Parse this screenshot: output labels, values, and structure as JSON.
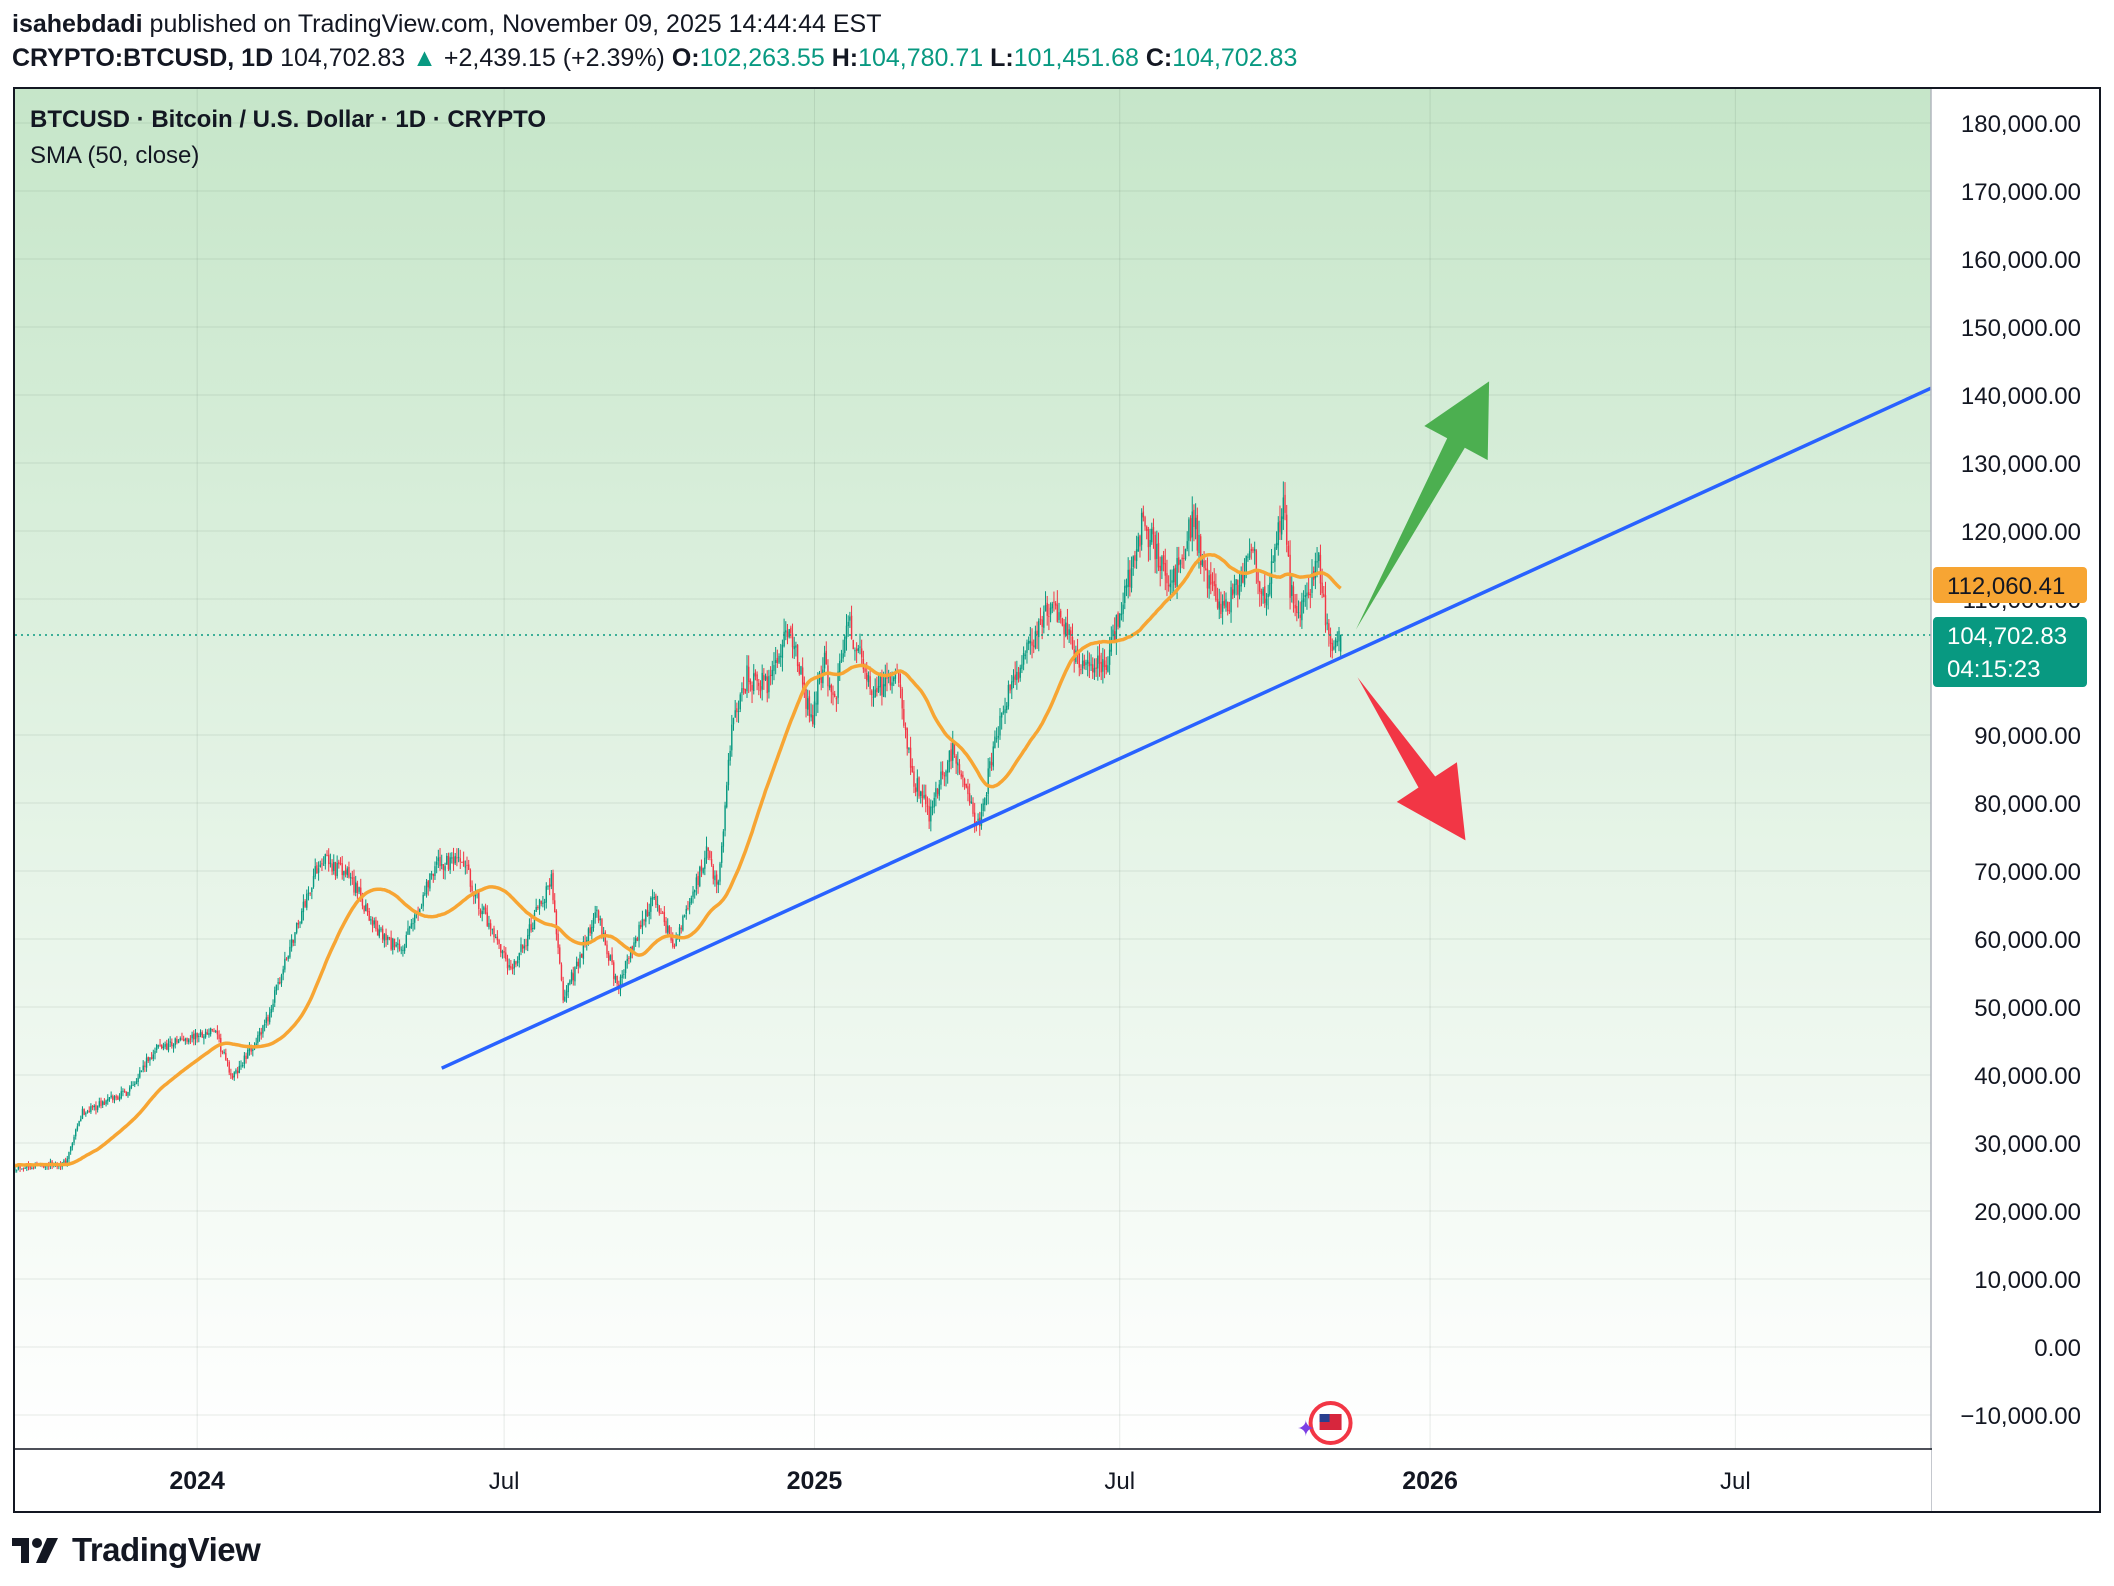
{
  "header": {
    "author": "isahebdadi",
    "published_text": "published on TradingView.com, November 09, 2025 14:44:44 EST",
    "symbol": "CRYPTO:BTCUSD, 1D",
    "last": "104,702.83",
    "change_arrow": "▲",
    "change": "+2,439.15 (+2.39%)",
    "o_label": "O:",
    "o_value": "102,263.55",
    "h_label": "H:",
    "h_value": "104,780.71",
    "l_label": "L:",
    "l_value": "101,451.68",
    "c_label": "C:",
    "c_value": "104,702.83"
  },
  "legend": {
    "title": "BTCUSD · Bitcoin / U.S. Dollar · 1D · CRYPTO",
    "indicator": "SMA (50, close)"
  },
  "footer": {
    "brand": "TradingView"
  },
  "colors": {
    "up": "#089981",
    "down": "#f23645",
    "sma": "#f7a533",
    "trendline": "#2962ff",
    "arrow_up": "#4caf50",
    "arrow_down": "#f23645",
    "bg_top": "#c6e6c9",
    "bg_bottom": "#ffffff"
  },
  "chart_data": {
    "type": "candlestick",
    "title": "BTCUSD · Bitcoin / U.S. Dollar · 1D · CRYPTO",
    "ylim": [
      -15000,
      185000
    ],
    "y_ticks": [
      -10000,
      0,
      10000,
      20000,
      30000,
      40000,
      50000,
      60000,
      70000,
      80000,
      90000,
      110000,
      120000,
      130000,
      140000,
      150000,
      160000,
      170000,
      180000
    ],
    "y_tick_labels": [
      "−10,000.00",
      "0.00",
      "10,000.00",
      "20,000.00",
      "30,000.00",
      "40,000.00",
      "50,000.00",
      "60,000.00",
      "70,000.00",
      "80,000.00",
      "90,000.00",
      "110,000.00",
      "120,000.00",
      "130,000.00",
      "140,000.00",
      "150,000.00",
      "160,000.00",
      "170,000.00",
      "180,000.00"
    ],
    "x_range": [
      "2023-09-15",
      "2026-10-25"
    ],
    "x_ticks": [
      {
        "date": "2024-01-01",
        "label": "2024",
        "bold": true
      },
      {
        "date": "2024-07-01",
        "label": "Jul",
        "bold": false
      },
      {
        "date": "2025-01-01",
        "label": "2025",
        "bold": true
      },
      {
        "date": "2025-07-01",
        "label": "Jul",
        "bold": false
      },
      {
        "date": "2026-01-01",
        "label": "2026",
        "bold": true
      },
      {
        "date": "2026-07-01",
        "label": "Jul",
        "bold": false
      }
    ],
    "price_anchors": [
      [
        "2023-09-15",
        26500
      ],
      [
        "2023-10-15",
        27000
      ],
      [
        "2023-10-25",
        34500
      ],
      [
        "2023-11-20",
        37500
      ],
      [
        "2023-12-08",
        44000
      ],
      [
        "2024-01-11",
        46500
      ],
      [
        "2024-01-22",
        39500
      ],
      [
        "2024-02-10",
        47000
      ],
      [
        "2024-02-28",
        61000
      ],
      [
        "2024-03-14",
        72000
      ],
      [
        "2024-04-01",
        69000
      ],
      [
        "2024-04-17",
        61000
      ],
      [
        "2024-05-01",
        58000
      ],
      [
        "2024-05-21",
        71000
      ],
      [
        "2024-06-07",
        71000
      ],
      [
        "2024-06-24",
        60500
      ],
      [
        "2024-07-05",
        55000
      ],
      [
        "2024-07-14",
        60000
      ],
      [
        "2024-07-29",
        69000
      ],
      [
        "2024-08-05",
        51000
      ],
      [
        "2024-08-25",
        64000
      ],
      [
        "2024-09-06",
        53000
      ],
      [
        "2024-09-27",
        66000
      ],
      [
        "2024-10-10",
        59000
      ],
      [
        "2024-10-29",
        72500
      ],
      [
        "2024-11-05",
        68000
      ],
      [
        "2024-11-13",
        91000
      ],
      [
        "2024-11-22",
        98500
      ],
      [
        "2024-12-05",
        97000
      ],
      [
        "2024-12-17",
        106000
      ],
      [
        "2024-12-30",
        92000
      ],
      [
        "2025-01-07",
        101000
      ],
      [
        "2025-01-13",
        94500
      ],
      [
        "2025-01-20",
        107000
      ],
      [
        "2025-02-03",
        97000
      ],
      [
        "2025-02-20",
        98000
      ],
      [
        "2025-02-28",
        84000
      ],
      [
        "2025-03-10",
        78500
      ],
      [
        "2025-03-24",
        88000
      ],
      [
        "2025-04-08",
        76500
      ],
      [
        "2025-04-22",
        93500
      ],
      [
        "2025-05-10",
        104000
      ],
      [
        "2025-05-22",
        110000
      ],
      [
        "2025-06-05",
        101500
      ],
      [
        "2025-06-22",
        100000
      ],
      [
        "2025-07-10",
        116000
      ],
      [
        "2025-07-14",
        121000
      ],
      [
        "2025-08-02",
        112500
      ],
      [
        "2025-08-14",
        122000
      ],
      [
        "2025-08-20",
        113000
      ],
      [
        "2025-09-01",
        108000
      ],
      [
        "2025-09-18",
        117000
      ],
      [
        "2025-09-26",
        109000
      ],
      [
        "2025-10-06",
        124500
      ],
      [
        "2025-10-10",
        111000
      ],
      [
        "2025-10-16",
        108500
      ],
      [
        "2025-10-27",
        115000
      ],
      [
        "2025-11-04",
        101000
      ],
      [
        "2025-11-07",
        103000
      ],
      [
        "2025-11-09",
        104702.83
      ]
    ],
    "last_candle": {
      "date": "2025-11-09",
      "open": 102263.55,
      "high": 104780.71,
      "low": 101451.68,
      "close": 104702.83
    },
    "last_price_label": {
      "price": "104,702.83",
      "countdown": "04:15:23"
    },
    "sma_label": {
      "value": 112060.41,
      "text": "112,060.41"
    },
    "sma_period": 50,
    "trendline": {
      "start": [
        "2024-05-25",
        41000
      ],
      "end": [
        "2026-10-25",
        141000
      ]
    },
    "annotations": [
      {
        "type": "arrow",
        "direction": "up",
        "start": [
          "2025-11-18",
          105500
        ],
        "end": [
          "2026-02-05",
          142000
        ]
      },
      {
        "type": "arrow",
        "direction": "down",
        "start": [
          "2025-11-19",
          98500
        ],
        "end": [
          "2026-01-22",
          74500
        ]
      }
    ]
  }
}
